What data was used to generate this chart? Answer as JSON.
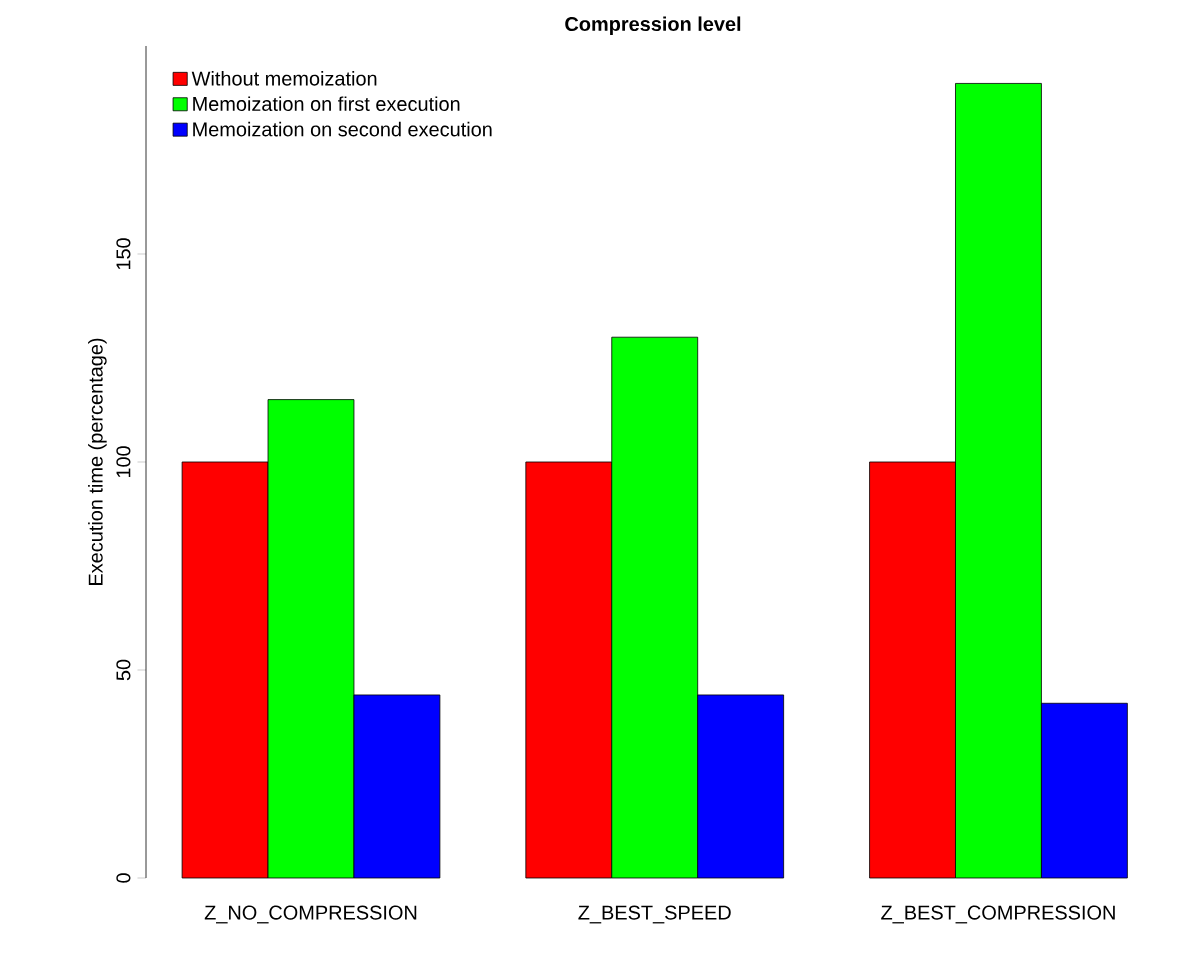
{
  "chart_data": {
    "type": "bar",
    "title": "Compression level",
    "ylabel": "Execution time (percentage)",
    "categories": [
      "Z_NO_COMPRESSION",
      "Z_BEST_SPEED",
      "Z_BEST_COMPRESSION"
    ],
    "series": [
      {
        "name": "Without memoization",
        "color": "#ff0000",
        "values": [
          100,
          100,
          100
        ]
      },
      {
        "name": "Memoization on first execution",
        "color": "#00ff00",
        "values": [
          115,
          130,
          191
        ]
      },
      {
        "name": "Memoization on second execution",
        "color": "#0000ff",
        "values": [
          44,
          44,
          42
        ]
      }
    ],
    "ylim": [
      0,
      200
    ],
    "yticks": [
      0,
      50,
      100,
      150
    ],
    "grid": false,
    "legend": "top left"
  }
}
